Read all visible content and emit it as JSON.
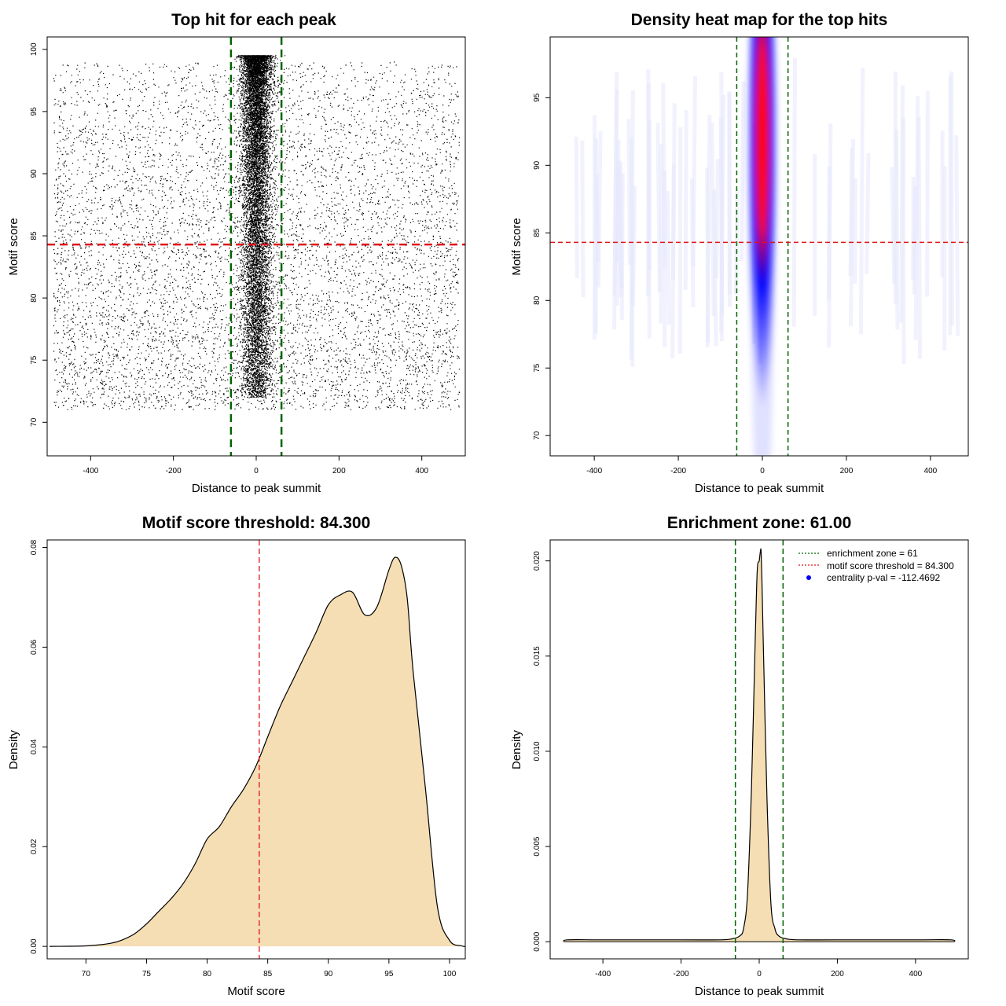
{
  "colors": {
    "threshold_line": "#e0151a",
    "zone_line": "#006400",
    "density_fill": "#f5deb3",
    "points": "#000000",
    "heat_low": "#ffffff",
    "heat_mid": "#0000ff",
    "heat_high": "#ff0000",
    "legend_point": "#0000ff"
  },
  "chart_data": [
    {
      "id": "scatter",
      "type": "scatter",
      "title": "Top hit for each peak",
      "xlabel": "Distance to peak summit",
      "ylabel": "Motif score",
      "xlim": [
        -505,
        505
      ],
      "ylim": [
        67.3,
        101.0
      ],
      "xticks": [
        -400,
        -200,
        0,
        200,
        400
      ],
      "yticks": [
        70,
        75,
        80,
        85,
        90,
        95,
        100
      ],
      "vlines": [
        -61,
        61
      ],
      "hline": 84.3,
      "point_cloud": {
        "background": {
          "x_range": [
            -490,
            490
          ],
          "y_range": [
            71,
            99
          ],
          "count": 7000
        },
        "central": {
          "x_mean": 0,
          "x_sd": 18,
          "y_range": [
            72,
            99.5
          ],
          "count": 30000
        }
      }
    },
    {
      "id": "heatmap",
      "type": "heatmap",
      "title": "Density heat map for the top hits",
      "xlabel": "Distance to peak summit",
      "ylabel": "Motif score",
      "xlim": [
        -505,
        490
      ],
      "ylim": [
        68.5,
        99.5
      ],
      "xticks": [
        -400,
        -200,
        0,
        200,
        400
      ],
      "yticks": [
        70,
        75,
        80,
        85,
        90,
        95
      ],
      "vlines": [
        -61,
        61
      ],
      "hline": 84.3,
      "hotspot": {
        "x": 0,
        "y": 92.5,
        "x_sd": 12,
        "y_sd": 5
      }
    },
    {
      "id": "score-density",
      "type": "area",
      "title": "Motif score threshold: 84.300",
      "xlabel": "Motif score",
      "ylabel": "Density",
      "xlim": [
        66.8,
        101.3
      ],
      "ylim": [
        -0.0025,
        0.0815
      ],
      "xticks": [
        70,
        75,
        80,
        85,
        90,
        95,
        100
      ],
      "yticks": [
        0.0,
        0.02,
        0.04,
        0.06,
        0.08
      ],
      "ytick_labels": [
        "0.00",
        "0.02",
        "0.04",
        "0.06",
        "0.08"
      ],
      "vline": 84.3,
      "x": [
        67,
        70,
        72,
        73,
        74,
        75,
        76,
        77,
        78,
        79,
        80,
        81,
        82,
        83,
        84,
        85,
        86,
        87,
        88,
        89,
        90,
        91,
        92,
        93,
        94,
        95,
        95.5,
        96,
        96.5,
        97,
        98,
        99,
        100,
        101,
        101.3
      ],
      "y": [
        0,
        0.0001,
        0.0006,
        0.0013,
        0.0025,
        0.0045,
        0.007,
        0.0095,
        0.0125,
        0.0165,
        0.0215,
        0.024,
        0.028,
        0.0315,
        0.036,
        0.042,
        0.048,
        0.053,
        0.058,
        0.063,
        0.0685,
        0.0705,
        0.071,
        0.0665,
        0.068,
        0.0755,
        0.078,
        0.0765,
        0.07,
        0.055,
        0.032,
        0.008,
        0.0012,
        0.0001,
        0
      ]
    },
    {
      "id": "distance-density",
      "type": "area",
      "title": "Enrichment zone: 61.00",
      "xlabel": "Distance to peak summit",
      "ylabel": "Density",
      "xlim": [
        -535,
        535
      ],
      "ylim": [
        -0.0009,
        0.0211
      ],
      "xticks": [
        -400,
        -200,
        0,
        200,
        400
      ],
      "yticks": [
        0.0,
        0.005,
        0.01,
        0.015,
        0.02
      ],
      "ytick_labels": [
        "0.000",
        "0.005",
        "0.010",
        "0.015",
        "0.020"
      ],
      "vlines": [
        -61,
        61
      ],
      "x": [
        -500,
        -490,
        -400,
        -200,
        -100,
        -70,
        -50,
        -40,
        -30,
        -20,
        -10,
        -5,
        0,
        3,
        5,
        8,
        10,
        20,
        30,
        40,
        50,
        70,
        100,
        200,
        400,
        490,
        500
      ],
      "y": [
        0,
        0.0001,
        0.0001,
        0.0001,
        0.0001,
        0.00015,
        0.0003,
        0.0007,
        0.0025,
        0.008,
        0.016,
        0.0195,
        0.02,
        0.0205,
        0.0204,
        0.018,
        0.016,
        0.0075,
        0.002,
        0.0007,
        0.0003,
        0.00015,
        0.0001,
        0.0001,
        0.0001,
        0.0001,
        0
      ],
      "legend": {
        "items": [
          {
            "label": "enrichment zone = 61",
            "style": "dotted",
            "color": "#006400"
          },
          {
            "label": "motif score threshold = 84.300",
            "style": "dotted",
            "color": "#e0151a"
          },
          {
            "label": "centrality p-val = -112.4692",
            "style": "point",
            "color": "#0000ff"
          }
        ],
        "placement": "top-right"
      }
    }
  ]
}
